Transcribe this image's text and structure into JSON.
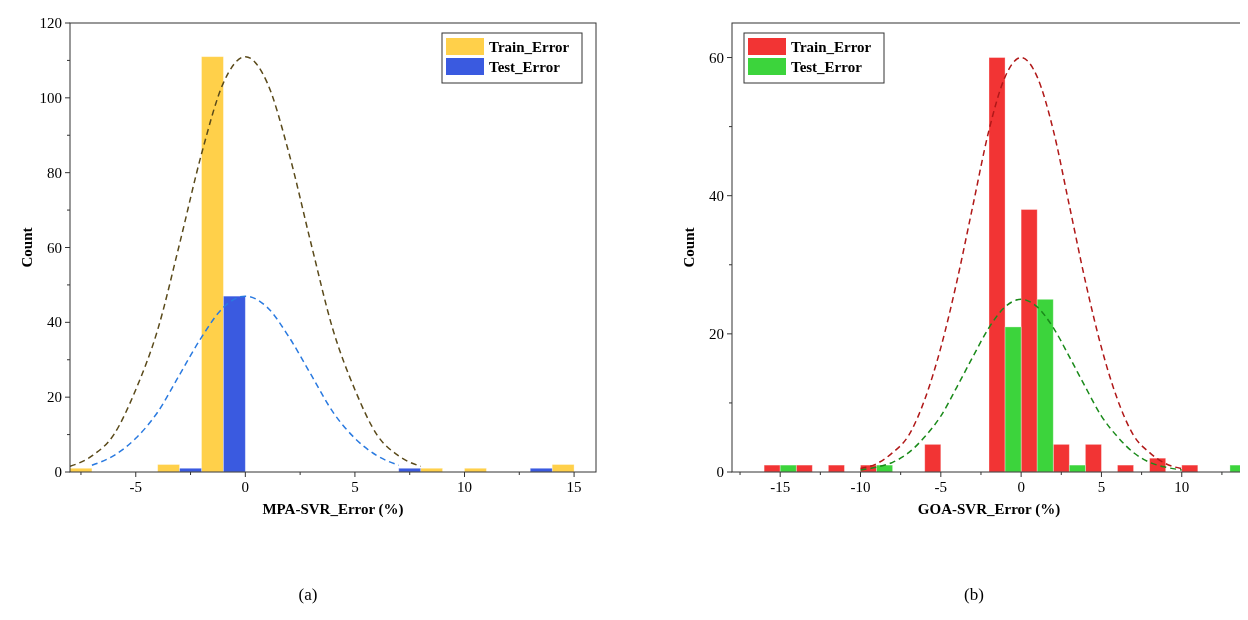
{
  "chart_data": [
    {
      "type": "bar",
      "xlabel": "MPA-SVR_Error (%)",
      "ylabel": "Count",
      "annotations": [
        "(a)"
      ],
      "legend": "top right",
      "xlim": [
        -8,
        16
      ],
      "xticks": [
        {
          "value": -7.5,
          "label": null
        },
        -5,
        {
          "value": -2.5,
          "label": null
        },
        0,
        {
          "value": 2.5,
          "label": null
        },
        5,
        {
          "value": 7.5,
          "label": null
        },
        10,
        {
          "value": 12.5,
          "label": null
        },
        15
      ],
      "ylim": [
        0,
        120
      ],
      "yticks": [
        0,
        {
          "value": 10,
          "label": null
        },
        20,
        {
          "value": 30,
          "label": null
        },
        40,
        {
          "value": 50,
          "label": null
        },
        60,
        {
          "value": 70,
          "label": null
        },
        80,
        {
          "value": 90,
          "label": null
        },
        100,
        {
          "value": 110,
          "label": null
        },
        120
      ],
      "series": [
        {
          "name": "Train_Error",
          "color": "#ffd04a",
          "x": [
            -7.5,
            -3.5,
            -1.5,
            8.5,
            10.5,
            14.5
          ],
          "values": [
            1,
            2,
            111,
            1,
            1,
            2
          ]
        },
        {
          "name": "Test_Error",
          "color": "#3a5ae0",
          "x": [
            -2.5,
            -0.5,
            7.5,
            13.5
          ],
          "values": [
            1,
            47,
            1,
            1
          ]
        },
        {
          "type": "line",
          "color": "#5a4a1a",
          "line_style": "dashed",
          "x": [
            -8,
            -7,
            -6,
            -5,
            -4,
            -3,
            -2,
            -1,
            0,
            1,
            2,
            3,
            4,
            5,
            6,
            7,
            8
          ],
          "values": [
            1.5,
            4.3,
            10,
            22,
            38,
            61,
            85,
            104,
            111,
            104,
            85,
            61,
            38,
            22,
            10,
            4.3,
            1.5
          ]
        },
        {
          "type": "line",
          "color": "#2a7ae0",
          "line_style": "dashed",
          "x": [
            -7,
            -6,
            -5,
            -4,
            -3,
            -2,
            -1,
            0,
            1,
            2,
            3,
            4,
            5,
            6,
            7
          ],
          "values": [
            1.8,
            4.4,
            9,
            16,
            26,
            36,
            44,
            47,
            44,
            36,
            26,
            16,
            9,
            4.4,
            1.8
          ]
        }
      ]
    },
    {
      "type": "bar",
      "xlabel": "GOA-SVR_Error (%)",
      "ylabel": "Count",
      "annotations": [
        "(b)"
      ],
      "legend": "top left",
      "xlim": [
        -18,
        14
      ],
      "xticks": [
        {
          "value": -17.5,
          "label": null
        },
        -15,
        {
          "value": -12.5,
          "label": null
        },
        -10,
        {
          "value": -7.5,
          "label": null
        },
        -5,
        {
          "value": -2.5,
          "label": null
        },
        0,
        {
          "value": 2.5,
          "label": null
        },
        5,
        {
          "value": 7.5,
          "label": null
        },
        10,
        {
          "value": 12.5,
          "label": null
        }
      ],
      "ylim": [
        0,
        65
      ],
      "yticks": [
        0,
        {
          "value": 10,
          "label": null
        },
        20,
        {
          "value": 30,
          "label": null
        },
        40,
        {
          "value": 50,
          "label": null
        },
        60
      ],
      "series": [
        {
          "name": "Train_Error",
          "color": "#f23434",
          "x": [
            -15.5,
            -13.5,
            -11.5,
            -9.5,
            -5.5,
            -1.5,
            0.5,
            2.5,
            4.5,
            6.5,
            8.5,
            10.5
          ],
          "values": [
            1,
            1,
            1,
            1,
            4,
            60,
            38,
            4,
            4,
            1,
            2,
            1
          ]
        },
        {
          "name": "Test_Error",
          "color": "#3cd43c",
          "x": [
            -14.5,
            -8.5,
            -0.5,
            1.5,
            3.5,
            13.5
          ],
          "values": [
            1,
            1,
            21,
            25,
            1,
            1
          ]
        },
        {
          "type": "line",
          "color": "#b01818",
          "line_style": "dashed",
          "x": [
            -10,
            -9,
            -8,
            -7,
            -6,
            -5,
            -4,
            -3,
            -2,
            -1,
            0,
            1,
            2,
            3,
            4,
            5,
            6,
            7,
            8,
            9,
            10
          ],
          "values": [
            0.5,
            1.2,
            2.8,
            5.3,
            10.5,
            18,
            27.6,
            38.6,
            49.5,
            57.2,
            60,
            57.2,
            49.5,
            38.6,
            27.6,
            18,
            10.5,
            5.3,
            2.8,
            1.2,
            0.5
          ]
        },
        {
          "type": "line",
          "color": "#1a8a1a",
          "line_style": "dashed",
          "x": [
            -10,
            -9,
            -8,
            -7,
            -6,
            -5,
            -4,
            -3,
            -2,
            -1,
            0,
            1,
            2,
            3,
            4,
            5,
            6,
            7,
            8,
            9,
            10
          ],
          "values": [
            0.3,
            0.7,
            1.4,
            2.8,
            5.1,
            8.1,
            12.3,
            16.7,
            20.9,
            23.9,
            25,
            23.9,
            20.9,
            16.7,
            12.3,
            8.1,
            5.1,
            2.8,
            1.4,
            0.7,
            0.3
          ]
        }
      ]
    }
  ]
}
